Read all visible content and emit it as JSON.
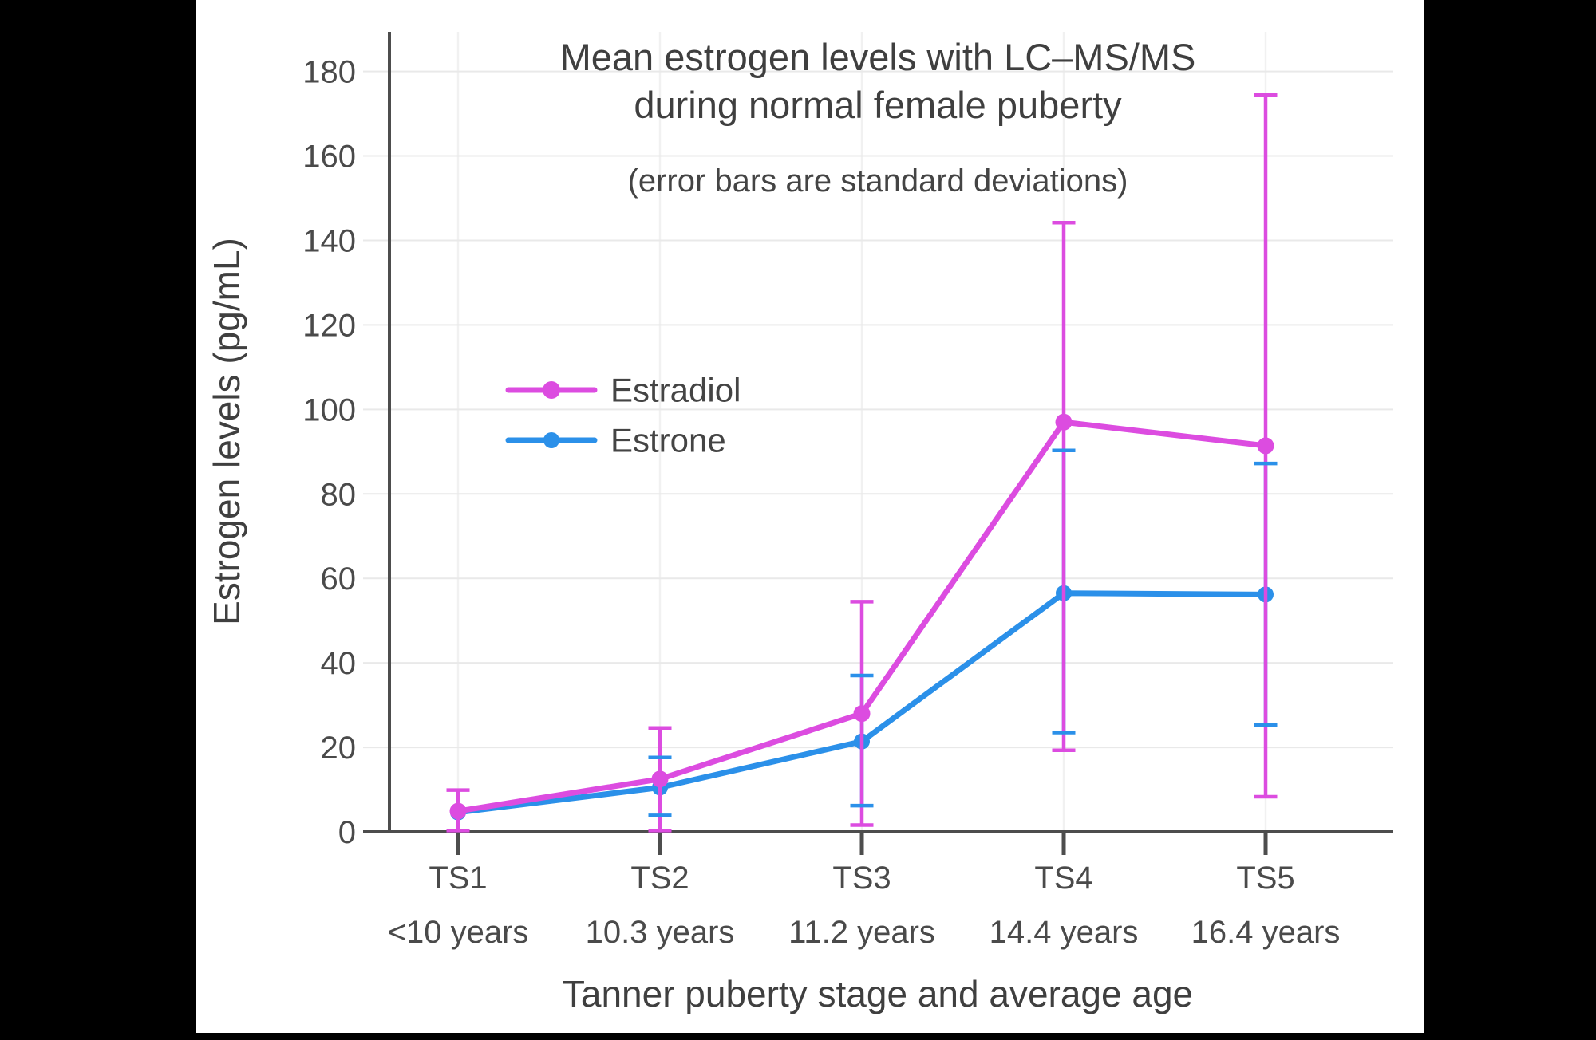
{
  "title": {
    "line1": "Mean estrogen levels with LC–MS/MS",
    "line2": "during normal female puberty",
    "subtitle": "(error bars are standard deviations)"
  },
  "axes": {
    "y_label": "Estrogen levels (pg/mL)",
    "x_label": "Tanner puberty stage and average age",
    "y_ticks": [
      0,
      20,
      40,
      60,
      80,
      100,
      120,
      140,
      160,
      180
    ]
  },
  "colors": {
    "background": "#000000",
    "panel": "#ffffff",
    "axis": "#4d4d4d",
    "gridline": "#e9e9e9",
    "column_gridline": "#f1f1f1",
    "text": "#444444"
  },
  "chart_data": {
    "type": "line",
    "title": "Mean estrogen levels with LC–MS/MS during normal female puberty",
    "subtitle": "(error bars are standard deviations)",
    "xlabel": "Tanner puberty stage and average age",
    "ylabel": "Estrogen levels (pg/mL)",
    "ylim": [
      0,
      190
    ],
    "grid": true,
    "legend_position": "inside-upper-left",
    "error_bars": "standard deviations",
    "categories": [
      {
        "stage": "TS1",
        "age": "<10 years"
      },
      {
        "stage": "TS2",
        "age": "10.3 years"
      },
      {
        "stage": "TS3",
        "age": "11.2 years"
      },
      {
        "stage": "TS4",
        "age": "14.4 years"
      },
      {
        "stage": "TS5",
        "age": "16.4 years"
      }
    ],
    "series": [
      {
        "name": "Estrone",
        "color": "#2b90e9",
        "values": [
          4.6,
          10.5,
          21.4,
          56.5,
          56.2
        ],
        "error_low": [
          null,
          3.9,
          6.2,
          23.5,
          25.3
        ],
        "error_high": [
          null,
          17.6,
          37.0,
          90.3,
          87.2
        ]
      },
      {
        "name": "Estradiol",
        "color": "#dc4ce0",
        "values": [
          4.9,
          12.5,
          28.0,
          97.0,
          91.4
        ],
        "error_low": [
          0.3,
          0.3,
          1.6,
          19.3,
          8.3
        ],
        "error_high": [
          9.9,
          24.6,
          54.5,
          144.2,
          174.5
        ]
      }
    ]
  }
}
